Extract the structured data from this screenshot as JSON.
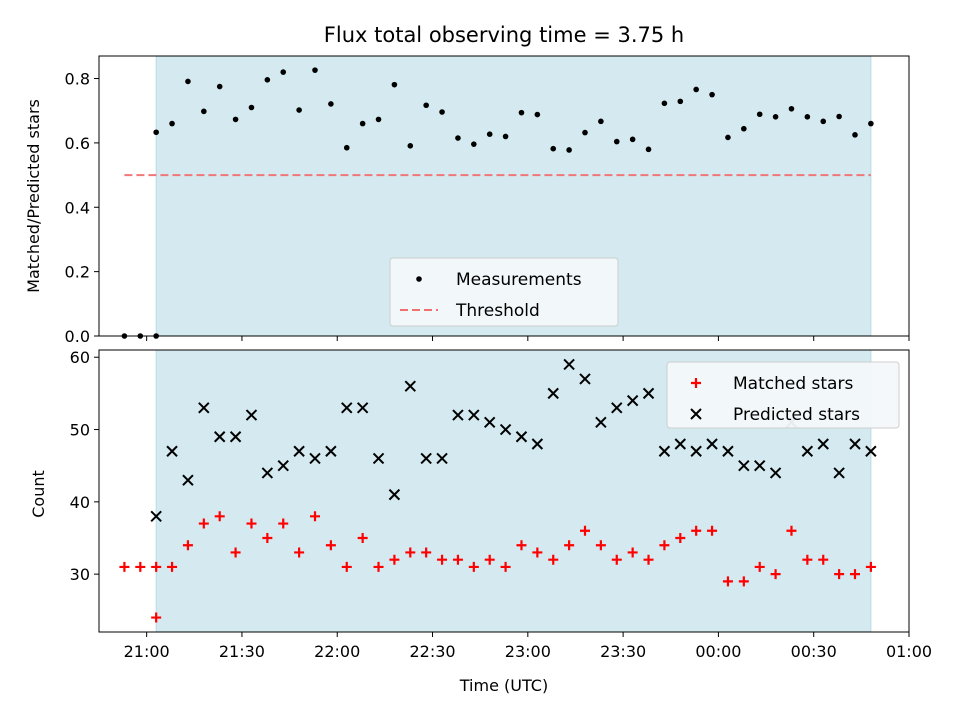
{
  "chart_data": [
    {
      "type": "scatter",
      "title": "Flux total observing time = 3.75 h",
      "xlabel": "",
      "ylabel": "Matched/Predicted stars",
      "xlim": [
        "20:45",
        "01:00"
      ],
      "ylim": [
        0,
        0.87
      ],
      "yticks": [
        0.0,
        0.2,
        0.4,
        0.6,
        0.8
      ],
      "ytick_labels": [
        "0.0",
        "0.2",
        "0.4",
        "0.6",
        "0.8"
      ],
      "shaded_span": [
        "21:03",
        "00:48"
      ],
      "legend_position": "lower-center",
      "series": [
        {
          "name": "Measurements",
          "marker": "dot",
          "color": "#000000",
          "x": [
            "20:53",
            "20:58",
            "21:03",
            "21:03",
            "21:08",
            "21:13",
            "21:18",
            "21:23",
            "21:28",
            "21:33",
            "21:38",
            "21:43",
            "21:48",
            "21:53",
            "21:58",
            "22:03",
            "22:08",
            "22:13",
            "22:18",
            "22:23",
            "22:28",
            "22:33",
            "22:38",
            "22:43",
            "22:48",
            "22:53",
            "22:58",
            "23:03",
            "23:08",
            "23:13",
            "23:18",
            "23:23",
            "23:28",
            "23:33",
            "23:38",
            "23:43",
            "23:48",
            "23:53",
            "23:58",
            "00:03",
            "00:08",
            "00:13",
            "00:18",
            "00:23",
            "00:28",
            "00:33",
            "00:38",
            "00:43",
            "00:48"
          ],
          "y": [
            0.0,
            0.0,
            0.0,
            0.633,
            0.66,
            0.791,
            0.698,
            0.775,
            0.673,
            0.71,
            0.796,
            0.82,
            0.702,
            0.826,
            0.721,
            0.585,
            0.66,
            0.673,
            0.781,
            0.591,
            0.717,
            0.696,
            0.615,
            0.596,
            0.627,
            0.62,
            0.694,
            0.688,
            0.582,
            0.578,
            0.632,
            0.667,
            0.604,
            0.611,
            0.58,
            0.723,
            0.729,
            0.766,
            0.75,
            0.617,
            0.644,
            0.689,
            0.681,
            0.706,
            0.681,
            0.667,
            0.682,
            0.625,
            0.66
          ]
        },
        {
          "name": "Threshold",
          "marker": "dashed-line",
          "color": "#f07070",
          "x": [
            "20:53",
            "00:48"
          ],
          "y": [
            0.5,
            0.5
          ]
        }
      ]
    },
    {
      "type": "scatter",
      "title": "",
      "xlabel": "Time (UTC)",
      "ylabel": "Count",
      "xlim": [
        "20:45",
        "01:00"
      ],
      "ylim": [
        22,
        61
      ],
      "xticks": [
        "21:00",
        "21:30",
        "22:00",
        "22:30",
        "23:00",
        "23:30",
        "00:00",
        "00:30",
        "01:00"
      ],
      "yticks": [
        30,
        40,
        50,
        60
      ],
      "shaded_span": [
        "21:03",
        "00:48"
      ],
      "legend_position": "top-right",
      "series": [
        {
          "name": "Matched stars",
          "marker": "plus",
          "color": "#ff0000",
          "x": [
            "20:53",
            "20:58",
            "21:03",
            "21:03",
            "21:08",
            "21:13",
            "21:18",
            "21:23",
            "21:28",
            "21:33",
            "21:38",
            "21:43",
            "21:48",
            "21:53",
            "21:58",
            "22:03",
            "22:08",
            "22:13",
            "22:18",
            "22:23",
            "22:28",
            "22:33",
            "22:38",
            "22:43",
            "22:48",
            "22:53",
            "22:58",
            "23:03",
            "23:08",
            "23:13",
            "23:18",
            "23:23",
            "23:28",
            "23:33",
            "23:38",
            "23:43",
            "23:48",
            "23:53",
            "23:58",
            "00:03",
            "00:08",
            "00:13",
            "00:18",
            "00:23",
            "00:28",
            "00:33",
            "00:38",
            "00:43",
            "00:48"
          ],
          "y": [
            31,
            31,
            31,
            24,
            31,
            34,
            37,
            38,
            33,
            37,
            35,
            37,
            33,
            38,
            34,
            31,
            35,
            31,
            32,
            33,
            33,
            32,
            32,
            31,
            32,
            31,
            34,
            33,
            32,
            34,
            36,
            34,
            32,
            33,
            32,
            34,
            35,
            36,
            36,
            29,
            29,
            31,
            30,
            36,
            32,
            32,
            30,
            30,
            31
          ]
        },
        {
          "name": "Predicted stars",
          "marker": "x",
          "color": "#000000",
          "x": [
            "21:03",
            "21:08",
            "21:13",
            "21:18",
            "21:23",
            "21:28",
            "21:33",
            "21:38",
            "21:43",
            "21:48",
            "21:53",
            "21:58",
            "22:03",
            "22:08",
            "22:13",
            "22:18",
            "22:23",
            "22:28",
            "22:33",
            "22:38",
            "22:43",
            "22:48",
            "22:53",
            "22:58",
            "23:03",
            "23:08",
            "23:13",
            "23:18",
            "23:23",
            "23:28",
            "23:33",
            "23:38",
            "23:43",
            "23:48",
            "23:53",
            "23:58",
            "00:03",
            "00:08",
            "00:13",
            "00:18",
            "00:23",
            "00:28",
            "00:33",
            "00:38",
            "00:43",
            "00:48"
          ],
          "y": [
            38,
            47,
            43,
            53,
            49,
            49,
            52,
            44,
            45,
            47,
            46,
            47,
            53,
            53,
            46,
            41,
            56,
            46,
            46,
            52,
            52,
            51,
            50,
            49,
            48,
            55,
            59,
            57,
            51,
            53,
            54,
            55,
            47,
            48,
            47,
            48,
            47,
            45,
            45,
            44,
            51,
            47,
            48,
            44,
            48,
            47
          ]
        }
      ]
    }
  ],
  "colors": {
    "shade": "#d4eaf0",
    "shade_edge": "#b9dbe4",
    "legend_bg": "#f4f8fb"
  }
}
